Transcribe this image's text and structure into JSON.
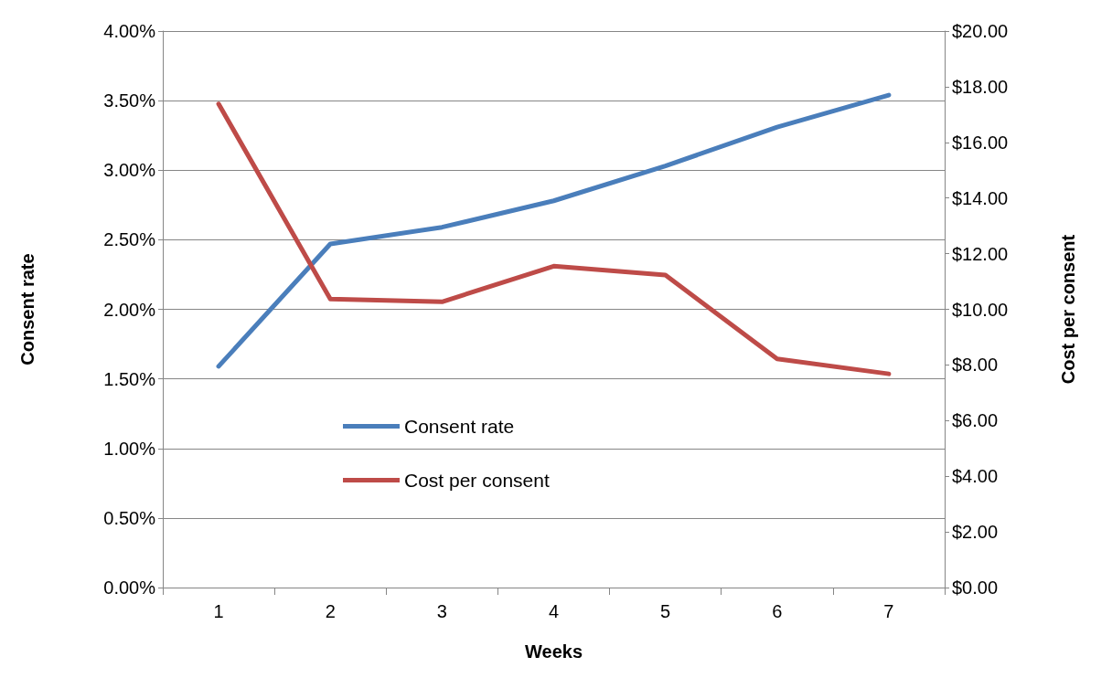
{
  "chart_data": {
    "type": "line",
    "xlabel": "Weeks",
    "ylabel": "Consent rate",
    "y2label": "Cost per consent",
    "categories": [
      "1",
      "2",
      "3",
      "4",
      "5",
      "6",
      "7"
    ],
    "series": [
      {
        "name": "Consent rate",
        "color": "#4a7ebb",
        "values": [
          1.59,
          2.47,
          2.59,
          2.78,
          3.03,
          3.31,
          3.54
        ]
      },
      {
        "name": "Cost per consent",
        "color": "#be4b48",
        "axis": "y2",
        "values": [
          17.38,
          10.37,
          10.27,
          11.55,
          11.23,
          8.22,
          7.68
        ]
      }
    ],
    "ylim": [
      0,
      4
    ],
    "yticks": [
      {
        "value": 0,
        "label": "0.00%"
      },
      {
        "value": 0.5,
        "label": "0.50%"
      },
      {
        "value": 1,
        "label": "1.00%"
      },
      {
        "value": 1.5,
        "label": "1.50%"
      },
      {
        "value": 2,
        "label": "2.00%"
      },
      {
        "value": 2.5,
        "label": "2.50%"
      },
      {
        "value": 3,
        "label": "3.00%"
      },
      {
        "value": 3.5,
        "label": "3.50%"
      },
      {
        "value": 4,
        "label": "4.00%"
      }
    ],
    "y2lim": [
      0,
      20
    ],
    "y2ticks": [
      {
        "value": 0,
        "label": "$0.00"
      },
      {
        "value": 2,
        "label": "$2.00"
      },
      {
        "value": 4,
        "label": "$4.00"
      },
      {
        "value": 6,
        "label": "$6.00"
      },
      {
        "value": 8,
        "label": "$8.00"
      },
      {
        "value": 10,
        "label": "$10.00"
      },
      {
        "value": 12,
        "label": "$12.00"
      },
      {
        "value": 14,
        "label": "$14.00"
      },
      {
        "value": 16,
        "label": "$16.00"
      },
      {
        "value": 18,
        "label": "$18.00"
      },
      {
        "value": 20,
        "label": "$20.00"
      }
    ],
    "grid": "y",
    "legend": "bottom",
    "marker": "none",
    "line_style": "solid"
  }
}
